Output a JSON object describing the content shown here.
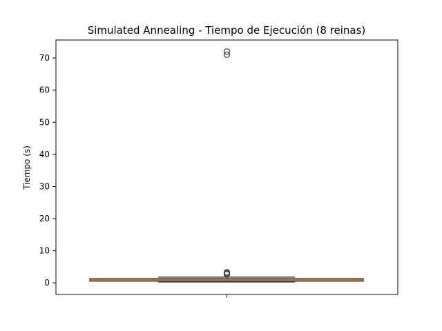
{
  "chart_data": {
    "type": "boxplot",
    "title": "Simulated Annealing - Tiempo de Ejecución (8 reinas)",
    "xlabel": "",
    "ylabel": "Tiempo (s)",
    "ylim": [
      -3.6,
      75.6
    ],
    "yticks": [
      0,
      10,
      20,
      30,
      40,
      50,
      60,
      70
    ],
    "grid": false,
    "box": {
      "whisker_low": 0.3,
      "q1": 0.55,
      "median": 0.9,
      "q3": 1.3,
      "whisker_high": 1.8,
      "outliers": [
        2.7,
        3.0,
        3.3,
        71.0,
        72.0
      ]
    },
    "colors": {
      "box_fill": "#1f77b4",
      "box_edge": "#3d3d3d",
      "median_line": "#ff7f0e",
      "outlier_edge": "#3d3d3d"
    }
  }
}
